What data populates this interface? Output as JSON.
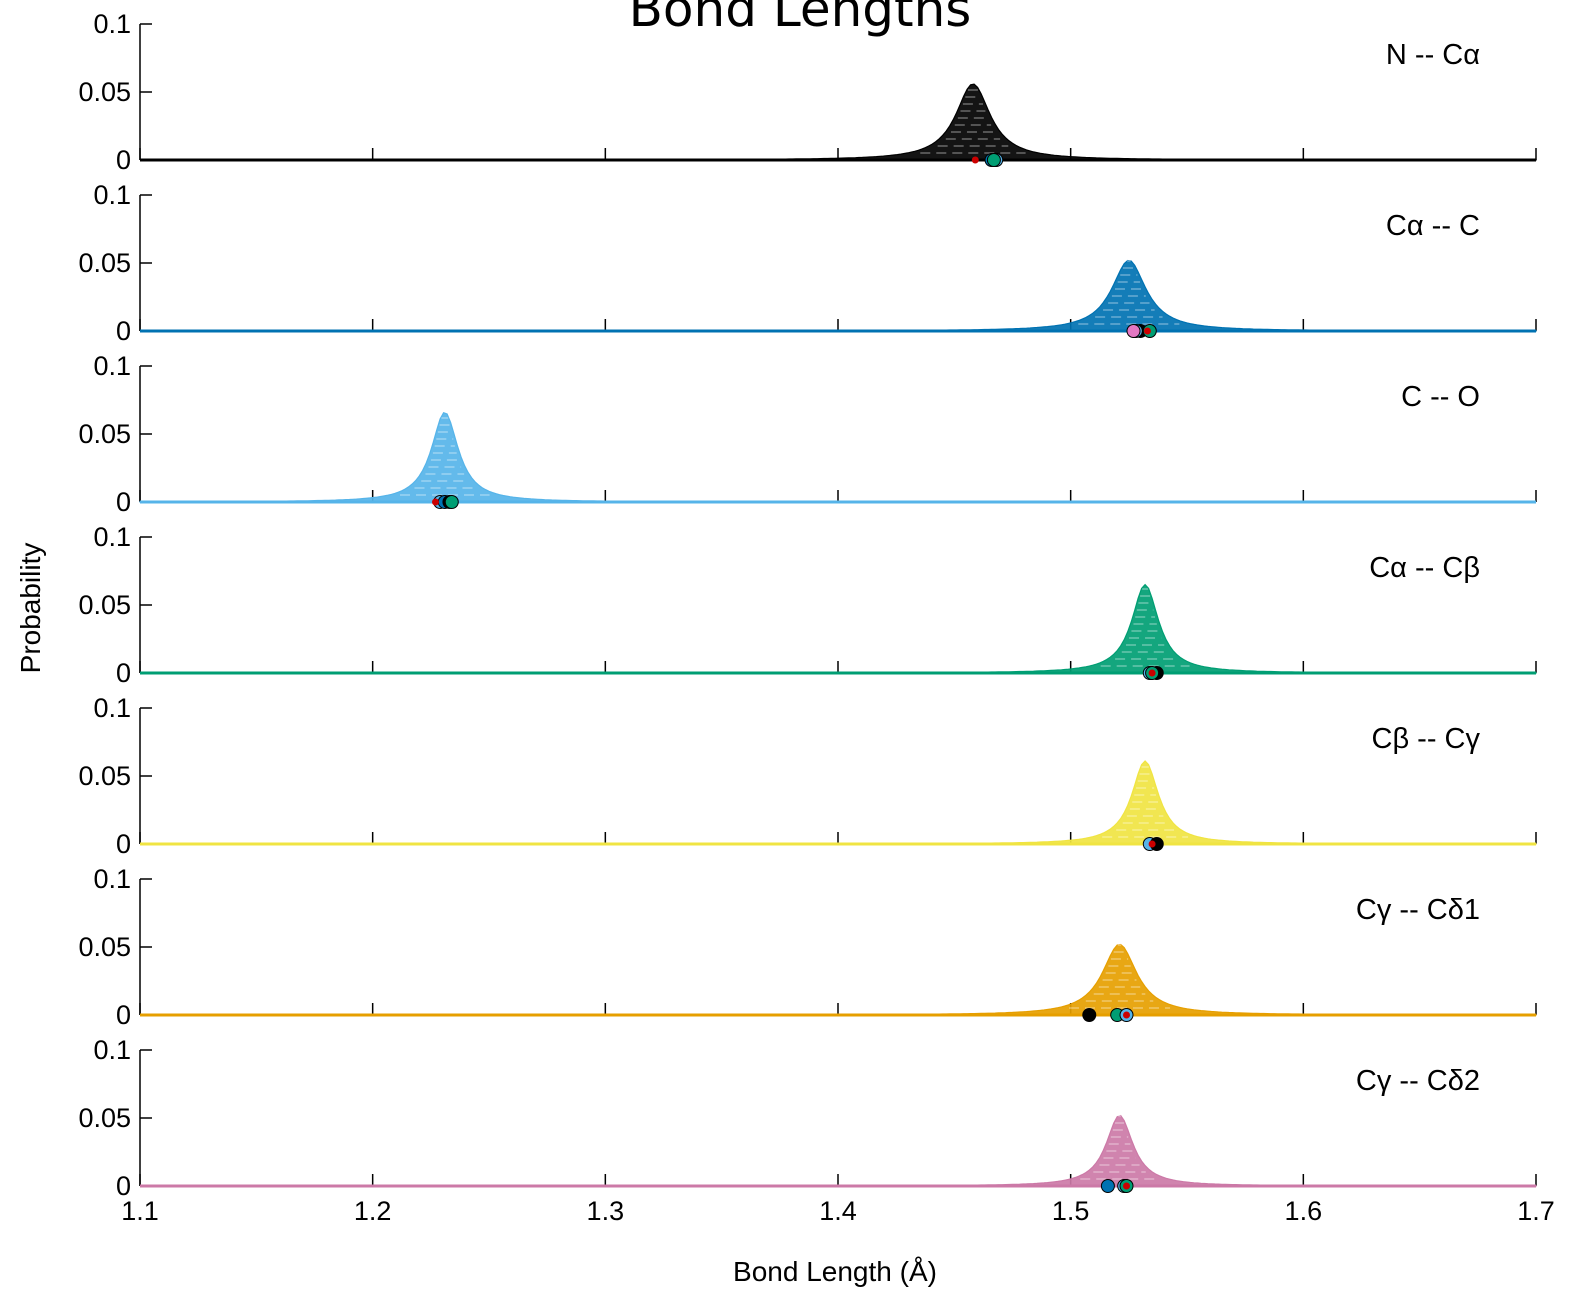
{
  "chart_data": {
    "type": "area",
    "title": "Bond Lengths",
    "xlabel": "Bond Length (Å)",
    "ylabel": "Probability",
    "xlim": [
      1.1,
      1.7
    ],
    "ylim": [
      0,
      0.1
    ],
    "xticks": [
      "1.1",
      "1.2",
      "1.3",
      "1.4",
      "1.5",
      "1.6",
      "1.7"
    ],
    "yticks": [
      "0",
      "0.05",
      "0.1"
    ],
    "grid": false,
    "legend": "none",
    "panels": [
      {
        "label": "N -- Cα",
        "color": "#000000",
        "peak_x": 1.458,
        "peak_y": 0.056,
        "width": 0.009,
        "markers": [
          {
            "x": 1.468,
            "color": "#56b4e9"
          },
          {
            "x": 1.466,
            "color": "#0072b2"
          },
          {
            "x": 1.467,
            "color": "#009e73"
          },
          {
            "x": 1.459,
            "color": "#cc0000"
          }
        ]
      },
      {
        "label": "Cα -- C",
        "color": "#0072b2",
        "peak_x": 1.525,
        "peak_y": 0.052,
        "width": 0.009,
        "markers": [
          {
            "x": 1.53,
            "color": "#000000"
          },
          {
            "x": 1.528,
            "color": "#56b4e9"
          },
          {
            "x": 1.534,
            "color": "#009e73"
          },
          {
            "x": 1.527,
            "color": "#e377c2"
          },
          {
            "x": 1.533,
            "color": "#cc0000"
          }
        ]
      },
      {
        "label": "C -- O",
        "color": "#56b4e9",
        "peak_x": 1.231,
        "peak_y": 0.066,
        "width": 0.007,
        "markers": [
          {
            "x": 1.229,
            "color": "#56b4e9"
          },
          {
            "x": 1.231,
            "color": "#0072b2"
          },
          {
            "x": 1.233,
            "color": "#000000"
          },
          {
            "x": 1.234,
            "color": "#009e73"
          },
          {
            "x": 1.227,
            "color": "#cc0000"
          }
        ]
      },
      {
        "label": "Cα -- Cβ",
        "color": "#009e73",
        "peak_x": 1.532,
        "peak_y": 0.065,
        "width": 0.007,
        "markers": [
          {
            "x": 1.534,
            "color": "#56b4e9"
          },
          {
            "x": 1.537,
            "color": "#000000"
          },
          {
            "x": 1.535,
            "color": "#009e73"
          },
          {
            "x": 1.535,
            "color": "#cc0000"
          }
        ]
      },
      {
        "label": "Cβ -- Cγ",
        "color": "#f0e442",
        "peak_x": 1.532,
        "peak_y": 0.061,
        "width": 0.007,
        "markers": [
          {
            "x": 1.534,
            "color": "#56b4e9"
          },
          {
            "x": 1.537,
            "color": "#000000"
          },
          {
            "x": 1.535,
            "color": "#cc0000"
          }
        ]
      },
      {
        "label": "Cγ -- Cδ1",
        "color": "#e69f00",
        "peak_x": 1.521,
        "peak_y": 0.052,
        "width": 0.009,
        "markers": [
          {
            "x": 1.508,
            "color": "#000000"
          },
          {
            "x": 1.52,
            "color": "#009e73"
          },
          {
            "x": 1.524,
            "color": "#56b4e9"
          },
          {
            "x": 1.524,
            "color": "#cc0000"
          }
        ]
      },
      {
        "label": "Cγ -- Cδ2",
        "color": "#cc79a7",
        "peak_x": 1.521,
        "peak_y": 0.052,
        "width": 0.007,
        "markers": [
          {
            "x": 1.516,
            "color": "#0072b2"
          },
          {
            "x": 1.523,
            "color": "#56b4e9"
          },
          {
            "x": 1.524,
            "color": "#009e73"
          },
          {
            "x": 1.524,
            "color": "#cc0000"
          }
        ]
      }
    ]
  }
}
